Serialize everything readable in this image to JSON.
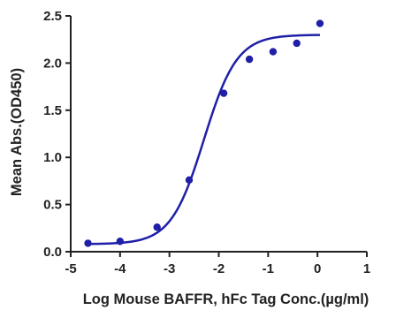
{
  "chart_data": {
    "type": "scatter",
    "title": "",
    "xlabel": "Log Mouse BAFFR, hFc Tag Conc.(µg/ml)",
    "ylabel": "Mean Abs.(OD450)",
    "xlim": [
      -5,
      1
    ],
    "ylim": [
      0,
      2.5
    ],
    "xticks": [
      "-5",
      "-4",
      "-3",
      "-2",
      "-1",
      "0",
      "1"
    ],
    "yticks": [
      "0.0",
      "0.5",
      "1.0",
      "1.5",
      "2.0",
      "2.5"
    ],
    "grid": false,
    "series": [
      {
        "points": [
          {
            "x": -4.65,
            "y": 0.09
          },
          {
            "x": -4.0,
            "y": 0.11
          },
          {
            "x": -3.25,
            "y": 0.26
          },
          {
            "x": -2.6,
            "y": 0.76
          },
          {
            "x": -1.9,
            "y": 1.68
          },
          {
            "x": -1.38,
            "y": 2.04
          },
          {
            "x": -0.9,
            "y": 2.12
          },
          {
            "x": -0.42,
            "y": 2.21
          },
          {
            "x": 0.05,
            "y": 2.42
          }
        ],
        "fit": {
          "bottom": 0.08,
          "top": 2.3,
          "logEC50": -2.3,
          "hill": 1.3,
          "x_range": [
            -4.65,
            0.05
          ]
        }
      }
    ],
    "colors": {
      "series": "#1f1fa8",
      "axis": "#222222"
    }
  }
}
